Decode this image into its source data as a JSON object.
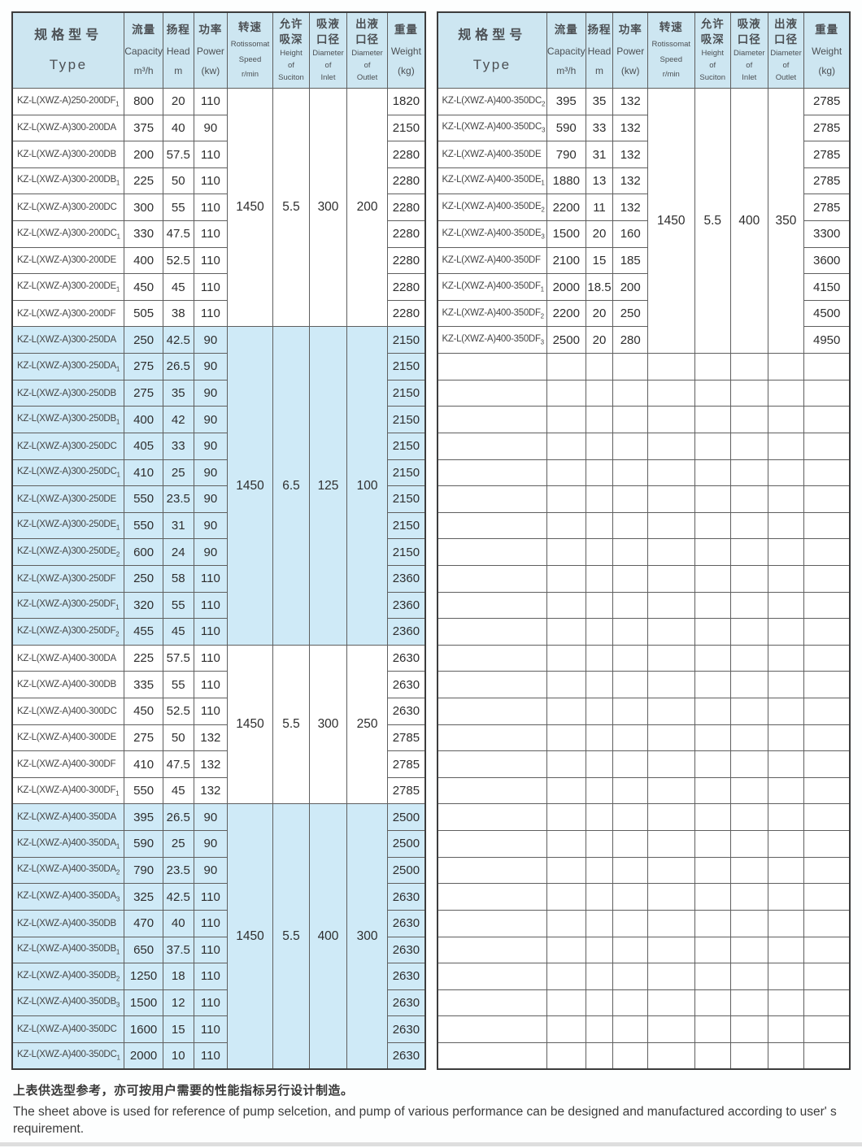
{
  "colors": {
    "header_bg": "#cde6f1",
    "band_bg": "#cfeaf7",
    "border": "#5f5f5f",
    "border_dark": "#3c3c3c",
    "bottom_bar": "#dedede"
  },
  "header_columns": [
    {
      "id": "type",
      "cn": [
        "规格型号"
      ],
      "en": [
        "Type"
      ]
    },
    {
      "id": "capacity",
      "cn": [
        "流量"
      ],
      "en": [
        "Capacity",
        "m³/h"
      ]
    },
    {
      "id": "head",
      "cn": [
        "扬程"
      ],
      "en": [
        "Head",
        "m"
      ]
    },
    {
      "id": "power",
      "cn": [
        "功率"
      ],
      "en": [
        "Power",
        "(kw)"
      ]
    },
    {
      "id": "speed",
      "cn": [
        "转速"
      ],
      "en": [
        "Rotissomat",
        "Speed",
        "r/min"
      ]
    },
    {
      "id": "suction",
      "cn": [
        "允许",
        "吸深"
      ],
      "en": [
        "Height",
        "of",
        "Suciton"
      ]
    },
    {
      "id": "inlet",
      "cn": [
        "吸液",
        "口径"
      ],
      "en": [
        "Diameter",
        "of",
        "Inlet"
      ]
    },
    {
      "id": "outlet",
      "cn": [
        "出液",
        "口径"
      ],
      "en": [
        "Diameter",
        "of",
        "Outlet"
      ]
    },
    {
      "id": "weight",
      "cn": [
        "重量"
      ],
      "en": [
        "Weight",
        "(kg)"
      ]
    }
  ],
  "left_table": {
    "groups": [
      {
        "shaded": false,
        "speed": "1450",
        "suction": "5.5",
        "inlet": "300",
        "outlet": "200",
        "rows": [
          {
            "type": "KZ-L(XWZ-A)250-200DF",
            "sub": "1",
            "capacity": "800",
            "head": "20",
            "power": "110",
            "weight": "1820"
          },
          {
            "type": "KZ-L(XWZ-A)300-200DA",
            "sub": "",
            "capacity": "375",
            "head": "40",
            "power": "90",
            "weight": "2150"
          },
          {
            "type": "KZ-L(XWZ-A)300-200DB",
            "sub": "",
            "capacity": "200",
            "head": "57.5",
            "power": "110",
            "weight": "2280"
          },
          {
            "type": "KZ-L(XWZ-A)300-200DB",
            "sub": "1",
            "capacity": "225",
            "head": "50",
            "power": "110",
            "weight": "2280"
          },
          {
            "type": "KZ-L(XWZ-A)300-200DC",
            "sub": "",
            "capacity": "300",
            "head": "55",
            "power": "110",
            "weight": "2280"
          },
          {
            "type": "KZ-L(XWZ-A)300-200DC",
            "sub": "1",
            "capacity": "330",
            "head": "47.5",
            "power": "110",
            "weight": "2280"
          },
          {
            "type": "KZ-L(XWZ-A)300-200DE",
            "sub": "",
            "capacity": "400",
            "head": "52.5",
            "power": "110",
            "weight": "2280"
          },
          {
            "type": "KZ-L(XWZ-A)300-200DE",
            "sub": "1",
            "capacity": "450",
            "head": "45",
            "power": "110",
            "weight": "2280"
          },
          {
            "type": "KZ-L(XWZ-A)300-200DF",
            "sub": "",
            "capacity": "505",
            "head": "38",
            "power": "110",
            "weight": "2280"
          }
        ]
      },
      {
        "shaded": true,
        "speed": "1450",
        "suction": "6.5",
        "inlet": "125",
        "outlet": "100",
        "rows": [
          {
            "type": "KZ-L(XWZ-A)300-250DA",
            "sub": "",
            "capacity": "250",
            "head": "42.5",
            "power": "90",
            "weight": "2150"
          },
          {
            "type": "KZ-L(XWZ-A)300-250DA",
            "sub": "1",
            "capacity": "275",
            "head": "26.5",
            "power": "90",
            "weight": "2150"
          },
          {
            "type": "KZ-L(XWZ-A)300-250DB",
            "sub": "",
            "capacity": "275",
            "head": "35",
            "power": "90",
            "weight": "2150"
          },
          {
            "type": "KZ-L(XWZ-A)300-250DB",
            "sub": "1",
            "capacity": "400",
            "head": "42",
            "power": "90",
            "weight": "2150"
          },
          {
            "type": "KZ-L(XWZ-A)300-250DC",
            "sub": "",
            "capacity": "405",
            "head": "33",
            "power": "90",
            "weight": "2150"
          },
          {
            "type": "KZ-L(XWZ-A)300-250DC",
            "sub": "1",
            "capacity": "410",
            "head": "25",
            "power": "90",
            "weight": "2150"
          },
          {
            "type": "KZ-L(XWZ-A)300-250DE",
            "sub": "",
            "capacity": "550",
            "head": "23.5",
            "power": "90",
            "weight": "2150"
          },
          {
            "type": "KZ-L(XWZ-A)300-250DE",
            "sub": "1",
            "capacity": "550",
            "head": "31",
            "power": "90",
            "weight": "2150"
          },
          {
            "type": "KZ-L(XWZ-A)300-250DE",
            "sub": "2",
            "capacity": "600",
            "head": "24",
            "power": "90",
            "weight": "2150"
          },
          {
            "type": "KZ-L(XWZ-A)300-250DF",
            "sub": "",
            "capacity": "250",
            "head": "58",
            "power": "110",
            "weight": "2360"
          },
          {
            "type": "KZ-L(XWZ-A)300-250DF",
            "sub": "1",
            "capacity": "320",
            "head": "55",
            "power": "110",
            "weight": "2360"
          },
          {
            "type": "KZ-L(XWZ-A)300-250DF",
            "sub": "2",
            "capacity": "455",
            "head": "45",
            "power": "110",
            "weight": "2360"
          }
        ]
      },
      {
        "shaded": false,
        "speed": "1450",
        "suction": "5.5",
        "inlet": "300",
        "outlet": "250",
        "rows": [
          {
            "type": "KZ-L(XWZ-A)400-300DA",
            "sub": "",
            "capacity": "225",
            "head": "57.5",
            "power": "110",
            "weight": "2630"
          },
          {
            "type": "KZ-L(XWZ-A)400-300DB",
            "sub": "",
            "capacity": "335",
            "head": "55",
            "power": "110",
            "weight": "2630"
          },
          {
            "type": "KZ-L(XWZ-A)400-300DC",
            "sub": "",
            "capacity": "450",
            "head": "52.5",
            "power": "110",
            "weight": "2630"
          },
          {
            "type": "KZ-L(XWZ-A)400-300DE",
            "sub": "",
            "capacity": "275",
            "head": "50",
            "power": "132",
            "weight": "2785"
          },
          {
            "type": "KZ-L(XWZ-A)400-300DF",
            "sub": "",
            "capacity": "410",
            "head": "47.5",
            "power": "132",
            "weight": "2785"
          },
          {
            "type": "KZ-L(XWZ-A)400-300DF",
            "sub": "1",
            "capacity": "550",
            "head": "45",
            "power": "132",
            "weight": "2785"
          }
        ]
      },
      {
        "shaded": true,
        "speed": "1450",
        "suction": "5.5",
        "inlet": "400",
        "outlet": "300",
        "rows": [
          {
            "type": "KZ-L(XWZ-A)400-350DA",
            "sub": "",
            "capacity": "395",
            "head": "26.5",
            "power": "90",
            "weight": "2500"
          },
          {
            "type": "KZ-L(XWZ-A)400-350DA",
            "sub": "1",
            "capacity": "590",
            "head": "25",
            "power": "90",
            "weight": "2500"
          },
          {
            "type": "KZ-L(XWZ-A)400-350DA",
            "sub": "2",
            "capacity": "790",
            "head": "23.5",
            "power": "90",
            "weight": "2500"
          },
          {
            "type": "KZ-L(XWZ-A)400-350DA",
            "sub": "3",
            "capacity": "325",
            "head": "42.5",
            "power": "110",
            "weight": "2630"
          },
          {
            "type": "KZ-L(XWZ-A)400-350DB",
            "sub": "",
            "capacity": "470",
            "head": "40",
            "power": "110",
            "weight": "2630"
          },
          {
            "type": "KZ-L(XWZ-A)400-350DB",
            "sub": "1",
            "capacity": "650",
            "head": "37.5",
            "power": "110",
            "weight": "2630"
          },
          {
            "type": "KZ-L(XWZ-A)400-350DB",
            "sub": "2",
            "capacity": "1250",
            "head": "18",
            "power": "110",
            "weight": "2630"
          },
          {
            "type": "KZ-L(XWZ-A)400-350DB",
            "sub": "3",
            "capacity": "1500",
            "head": "12",
            "power": "110",
            "weight": "2630"
          },
          {
            "type": "KZ-L(XWZ-A)400-350DC",
            "sub": "",
            "capacity": "1600",
            "head": "15",
            "power": "110",
            "weight": "2630"
          },
          {
            "type": "KZ-L(XWZ-A)400-350DC",
            "sub": "1",
            "capacity": "2000",
            "head": "10",
            "power": "110",
            "weight": "2630"
          }
        ]
      }
    ],
    "empty_rows": 0
  },
  "right_table": {
    "groups": [
      {
        "shaded": false,
        "speed": "1450",
        "suction": "5.5",
        "inlet": "400",
        "outlet": "350",
        "rows": [
          {
            "type": "KZ-L(XWZ-A)400-350DC",
            "sub": "2",
            "capacity": "395",
            "head": "35",
            "power": "132",
            "weight": "2785"
          },
          {
            "type": "KZ-L(XWZ-A)400-350DC",
            "sub": "3",
            "capacity": "590",
            "head": "33",
            "power": "132",
            "weight": "2785"
          },
          {
            "type": "KZ-L(XWZ-A)400-350DE",
            "sub": "",
            "capacity": "790",
            "head": "31",
            "power": "132",
            "weight": "2785"
          },
          {
            "type": "KZ-L(XWZ-A)400-350DE",
            "sub": "1",
            "capacity": "1880",
            "head": "13",
            "power": "132",
            "weight": "2785"
          },
          {
            "type": "KZ-L(XWZ-A)400-350DE",
            "sub": "2",
            "capacity": "2200",
            "head": "11",
            "power": "132",
            "weight": "2785"
          },
          {
            "type": "KZ-L(XWZ-A)400-350DE",
            "sub": "3",
            "capacity": "1500",
            "head": "20",
            "power": "160",
            "weight": "3300"
          },
          {
            "type": "KZ-L(XWZ-A)400-350DF",
            "sub": "",
            "capacity": "2100",
            "head": "15",
            "power": "185",
            "weight": "3600"
          },
          {
            "type": "KZ-L(XWZ-A)400-350DF",
            "sub": "1",
            "capacity": "2000",
            "head": "18.5",
            "power": "200",
            "weight": "4150"
          },
          {
            "type": "KZ-L(XWZ-A)400-350DF",
            "sub": "2",
            "capacity": "2200",
            "head": "20",
            "power": "250",
            "weight": "4500"
          },
          {
            "type": "KZ-L(XWZ-A)400-350DF",
            "sub": "3",
            "capacity": "2500",
            "head": "20",
            "power": "280",
            "weight": "4950"
          }
        ]
      }
    ],
    "empty_rows": 27
  },
  "notes": {
    "cn": "上表供选型参考，亦可按用户需要的性能指标另行设计制造。",
    "en": "The sheet above is used for reference of pump selcetion, and pump of various performance can be designed and manufactured according to user' s requirement."
  }
}
